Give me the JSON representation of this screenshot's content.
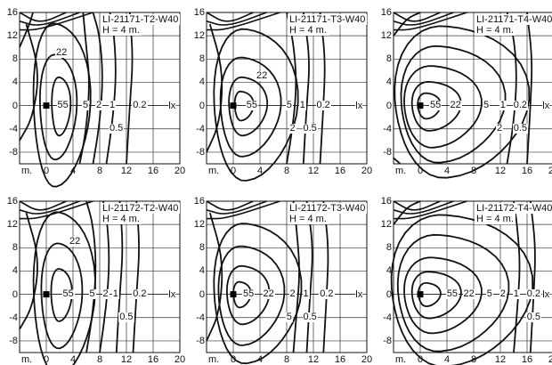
{
  "panels": [
    {
      "title": "LI-21171-T2-W40",
      "height": "H = 4 m.",
      "contour_labels": [
        "22",
        "55",
        "5",
        "2",
        "1",
        "0.2",
        "0.5"
      ],
      "style": "narrow"
    },
    {
      "title": "LI-21171-T3-W40",
      "height": "H = 4 m.",
      "contour_labels": [
        "22",
        "55",
        "5",
        "1",
        "0.2",
        "2",
        "0.5"
      ],
      "style": "medium"
    },
    {
      "title": "LI-21171-T4-W40",
      "height": "H = 4 m.",
      "contour_labels": [
        "55",
        "22",
        "5",
        "1",
        "0.2",
        "2",
        "0.5"
      ],
      "style": "wide"
    },
    {
      "title": "LI-21172-T2-W40",
      "height": "H = 4 m.",
      "contour_labels": [
        "22",
        "55",
        "5",
        "2",
        "1",
        "0.2",
        "0.5"
      ],
      "style": "narrow2"
    },
    {
      "title": "LI-21172-T3-W40",
      "height": "H = 4 m.",
      "contour_labels": [
        "55",
        "22",
        "2",
        "1",
        "0.2",
        "5",
        "0.5"
      ],
      "style": "medium2"
    },
    {
      "title": "LI-21172-T4-W40",
      "height": "H = 4 m.",
      "contour_labels": [
        "55",
        "22",
        "5",
        "2",
        "1",
        "0.2",
        "0.5"
      ],
      "style": "wide2"
    }
  ],
  "axes": {
    "y_ticks": [
      "16",
      "12",
      "8",
      "4",
      "0",
      "-4",
      "-8"
    ],
    "x_ticks": [
      "0",
      "4",
      "8",
      "12",
      "16",
      "20"
    ],
    "x_unit": "m.",
    "iso_unit": "lx"
  }
}
